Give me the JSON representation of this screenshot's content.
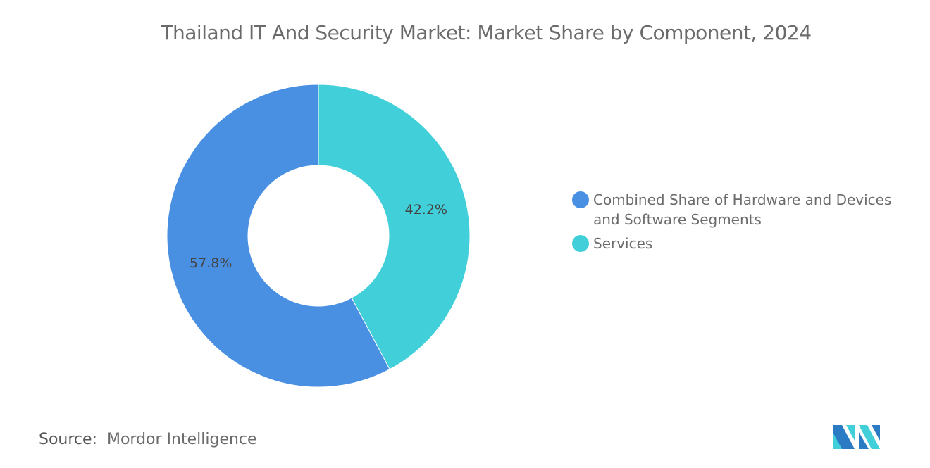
{
  "chart_data": {
    "type": "pie",
    "subtype": "donut",
    "title": "Thailand IT And Security Market: Market Share by Component, 2024",
    "categories": [
      "Combined Share of Hardware and Devices and Software Segments",
      "Services"
    ],
    "values": [
      57.8,
      42.2
    ],
    "labels": [
      "57.8%",
      "42.2%"
    ],
    "colors": [
      "#4A90E2",
      "#41CFDA"
    ],
    "legend_position": "right"
  },
  "source": {
    "label": "Source:",
    "value": "Mordor Intelligence"
  },
  "logo": {
    "text": "Mordor Intelligence"
  }
}
